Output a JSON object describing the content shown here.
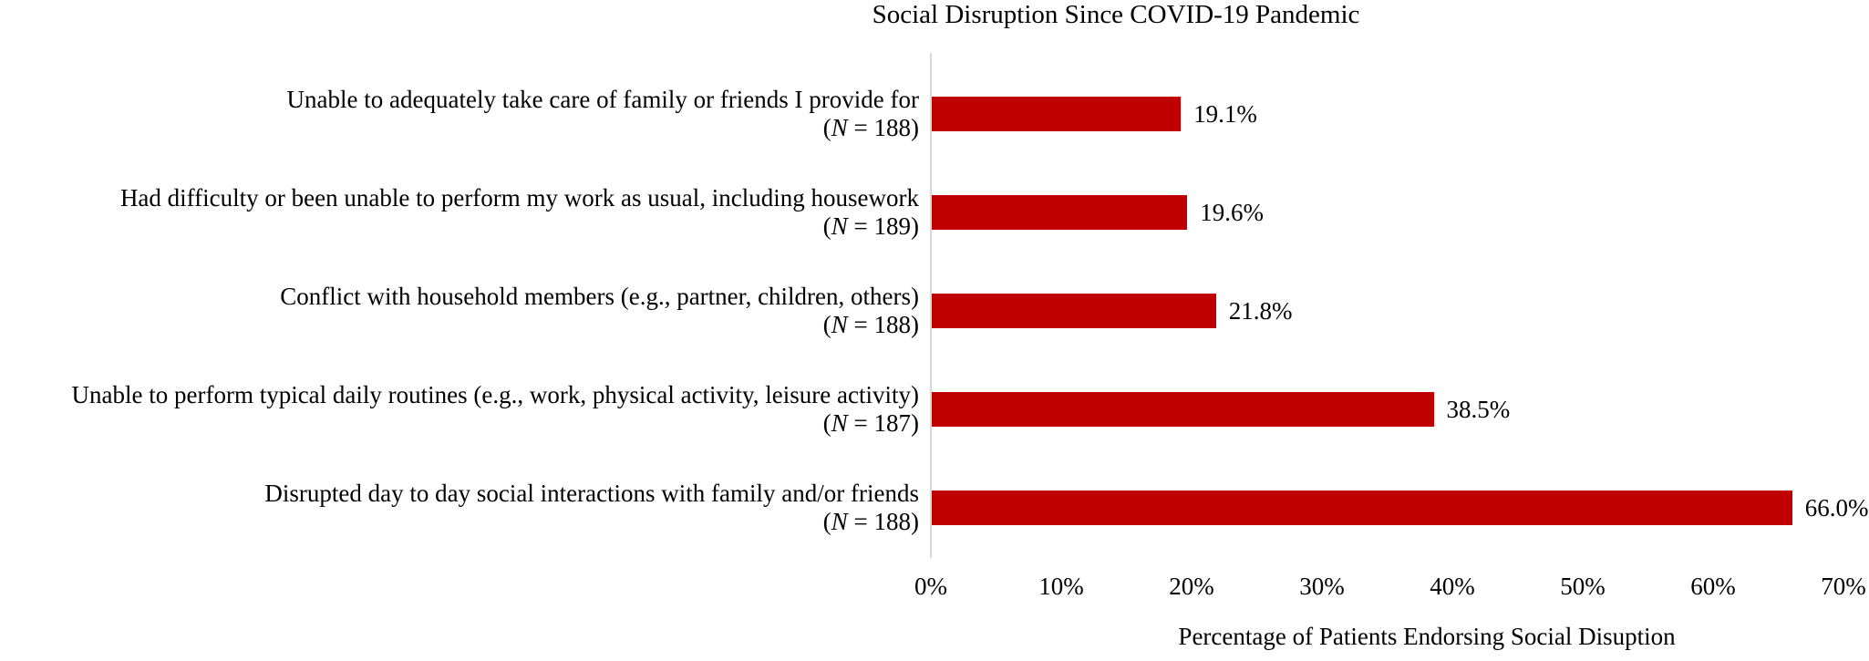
{
  "chart_data": {
    "type": "bar",
    "orientation": "horizontal",
    "title": "Social Disruption Since COVID-19 Pandemic",
    "xlabel": "Percentage of Patients Endorsing Social Disuption",
    "xlim": [
      0,
      70
    ],
    "x_ticks": [
      "0%",
      "10%",
      "20%",
      "30%",
      "40%",
      "50%",
      "60%",
      "70%"
    ],
    "grid": false,
    "legend": null,
    "bar_color": "#c00000",
    "axis_line_color": "#d9d9d9",
    "categories": [
      {
        "label": "Unable to adequately take care of family or friends I provide for",
        "n_label": "(N = 188)",
        "value": 19.1,
        "value_label": "19.1%"
      },
      {
        "label": "Had difficulty or been unable to perform my work as usual, including housework",
        "n_label": "(N = 189)",
        "value": 19.6,
        "value_label": "19.6%"
      },
      {
        "label": "Conflict with household members (e.g., partner, children, others)",
        "n_label": "(N = 188)",
        "value": 21.8,
        "value_label": "21.8%"
      },
      {
        "label": "Unable to perform typical daily routines (e.g., work, physical activity, leisure activity)",
        "n_label": "(N = 187)",
        "value": 38.5,
        "value_label": "38.5%"
      },
      {
        "label": "Disrupted day to day social interactions with family and/or friends",
        "n_label": "(N = 188)",
        "value": 66.0,
        "value_label": "66.0%"
      }
    ]
  }
}
